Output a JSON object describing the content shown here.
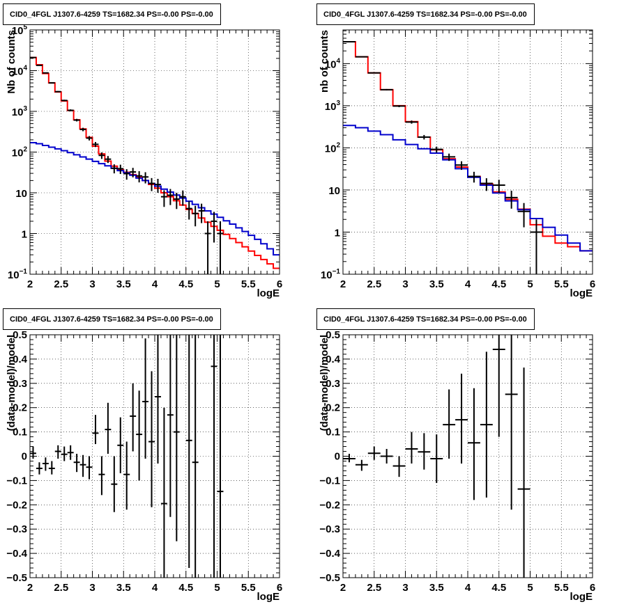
{
  "chart_data": [
    {
      "type": "line",
      "title": "CID0_4FGL J1307.6-4259 TS=1682.34 PS=-0.00 PS=-0.00",
      "xlabel": "logE",
      "ylabel": "Nb of counts",
      "xlim": [
        2,
        6
      ],
      "ylim": [
        0.1,
        100000
      ],
      "yscale": "log",
      "xticks": [
        "2",
        "2.5",
        "3",
        "3.5",
        "4",
        "4.5",
        "5",
        "5.5",
        "6"
      ],
      "yticks": [
        {
          "v": 0.1,
          "base": "10",
          "exp": "−1"
        },
        {
          "v": 1,
          "base": "1",
          "exp": ""
        },
        {
          "v": 10,
          "base": "10",
          "exp": ""
        },
        {
          "v": 100,
          "base": "10",
          "exp": "2"
        },
        {
          "v": 1000,
          "base": "10",
          "exp": "3"
        },
        {
          "v": 10000,
          "base": "10",
          "exp": "4"
        },
        {
          "v": 100000,
          "base": "10",
          "exp": "5"
        }
      ],
      "grid": true,
      "bin_edges": [
        2.0,
        2.1,
        2.2,
        2.3,
        2.4,
        2.5,
        2.6,
        2.7,
        2.8,
        2.9,
        3.0,
        3.1,
        3.2,
        3.3,
        3.4,
        3.5,
        3.6,
        3.7,
        3.8,
        3.9,
        4.0,
        4.1,
        4.2,
        4.3,
        4.4,
        4.5,
        4.6,
        4.7,
        4.8,
        4.9,
        5.0,
        5.1,
        5.2,
        5.3,
        5.4,
        5.5,
        5.6,
        5.7,
        5.8,
        5.9,
        6.0
      ],
      "series": [
        {
          "kind": "step",
          "color": "#ff0000",
          "values": [
            21000,
            14000,
            8500,
            5000,
            3000,
            1800,
            1050,
            620,
            370,
            230,
            140,
            90,
            60,
            45,
            37,
            32,
            28,
            24,
            20,
            16,
            13,
            10,
            8,
            6.4,
            5,
            3.9,
            3.1,
            2.4,
            1.9,
            1.5,
            1.2,
            0.95,
            0.75,
            0.6,
            0.47,
            0.37,
            0.29,
            0.23,
            0.18,
            0.14
          ]
        },
        {
          "kind": "step",
          "color": "#0000cc",
          "values": [
            170,
            160,
            145,
            132,
            120,
            108,
            97,
            86,
            76,
            67,
            59,
            52,
            46,
            40,
            35,
            31,
            27,
            23,
            20,
            17,
            14.5,
            12.3,
            10.4,
            8.8,
            7.4,
            6.2,
            5.2,
            4.3,
            3.6,
            3.0,
            2.5,
            2.05,
            1.7,
            1.38,
            1.12,
            0.9,
            0.72,
            0.56,
            0.42,
            0.3
          ]
        },
        {
          "kind": "points",
          "color": "#000000",
          "points": [
            {
              "x": 2.05,
              "y": 21000,
              "lo": 20700,
              "hi": 21300
            },
            {
              "x": 2.15,
              "y": 13500,
              "lo": 13250,
              "hi": 13750
            },
            {
              "x": 2.25,
              "y": 8800,
              "lo": 8600,
              "hi": 9000
            },
            {
              "x": 2.35,
              "y": 5000,
              "lo": 4850,
              "hi": 5150
            },
            {
              "x": 2.45,
              "y": 3050,
              "lo": 2940,
              "hi": 3160
            },
            {
              "x": 2.55,
              "y": 1850,
              "lo": 1770,
              "hi": 1930
            },
            {
              "x": 2.65,
              "y": 1060,
              "lo": 1000,
              "hi": 1120
            },
            {
              "x": 2.75,
              "y": 610,
              "lo": 565,
              "hi": 655
            },
            {
              "x": 2.85,
              "y": 360,
              "lo": 325,
              "hi": 395
            },
            {
              "x": 2.95,
              "y": 220,
              "lo": 193,
              "hi": 247
            },
            {
              "x": 3.05,
              "y": 155,
              "lo": 133,
              "hi": 177
            },
            {
              "x": 3.15,
              "y": 83,
              "lo": 68,
              "hi": 98
            },
            {
              "x": 3.25,
              "y": 67,
              "lo": 54,
              "hi": 80
            },
            {
              "x": 3.35,
              "y": 40,
              "lo": 30,
              "hi": 50
            },
            {
              "x": 3.45,
              "y": 39,
              "lo": 29,
              "hi": 49
            },
            {
              "x": 3.55,
              "y": 29.5,
              "lo": 21,
              "hi": 38
            },
            {
              "x": 3.65,
              "y": 32.5,
              "lo": 24,
              "hi": 41
            },
            {
              "x": 3.75,
              "y": 26,
              "lo": 18,
              "hi": 34
            },
            {
              "x": 3.85,
              "y": 24.5,
              "lo": 17,
              "hi": 32
            },
            {
              "x": 3.95,
              "y": 17,
              "lo": 11,
              "hi": 23
            },
            {
              "x": 4.05,
              "y": 16,
              "lo": 10,
              "hi": 22
            },
            {
              "x": 4.15,
              "y": 8,
              "lo": 4.5,
              "hi": 11.5
            },
            {
              "x": 4.25,
              "y": 8.7,
              "lo": 5,
              "hi": 12.4
            },
            {
              "x": 4.35,
              "y": 7,
              "lo": 4,
              "hi": 10
            },
            {
              "x": 4.45,
              "y": 8,
              "lo": 4.8,
              "hi": 11.4
            },
            {
              "x": 4.55,
              "y": 4.1,
              "lo": 2.2,
              "hi": 6.2
            },
            {
              "x": 4.65,
              "y": 3.1,
              "lo": 1.5,
              "hi": 4.8
            },
            {
              "x": 4.75,
              "y": 3.6,
              "lo": 1.8,
              "hi": 5.4
            },
            {
              "x": 4.85,
              "y": 1,
              "lo": 0.1,
              "hi": 2
            },
            {
              "x": 4.95,
              "y": 2,
              "lo": 0.6,
              "hi": 3.4
            },
            {
              "x": 5.05,
              "y": 1,
              "lo": 0.1,
              "hi": 2
            }
          ]
        }
      ]
    },
    {
      "type": "line",
      "title": "CID0_4FGL J1307.6-4259 TS=1682.34 PS=-0.00 PS=-0.00",
      "xlabel": "logE",
      "ylabel": "nb of counts",
      "xlim": [
        2,
        6
      ],
      "ylim": [
        0.1,
        63000
      ],
      "yscale": "log",
      "xticks": [
        "2",
        "2.5",
        "3",
        "3.5",
        "4",
        "4.5",
        "5",
        "5.5",
        "6"
      ],
      "yticks": [
        {
          "v": 0.1,
          "base": "10",
          "exp": "−1"
        },
        {
          "v": 1,
          "base": "1",
          "exp": ""
        },
        {
          "v": 10,
          "base": "10",
          "exp": ""
        },
        {
          "v": 100,
          "base": "10",
          "exp": "2"
        },
        {
          "v": 1000,
          "base": "10",
          "exp": "3"
        },
        {
          "v": 10000,
          "base": "10",
          "exp": "4"
        }
      ],
      "grid": true,
      "bin_edges": [
        2.0,
        2.2,
        2.4,
        2.6,
        2.8,
        3.0,
        3.2,
        3.4,
        3.6,
        3.8,
        4.0,
        4.2,
        4.4,
        4.6,
        4.8,
        5.0,
        5.2,
        5.4,
        5.6,
        5.8,
        6.0
      ],
      "series": [
        {
          "kind": "step",
          "color": "#ff0000",
          "values": [
            33000,
            14500,
            6000,
            2400,
            1000,
            420,
            180,
            90,
            55,
            35,
            21,
            14,
            9,
            6,
            3.5,
            1.5,
            0.8,
            0.55,
            0.45,
            0.36
          ]
        },
        {
          "kind": "step",
          "color": "#0000cc",
          "values": [
            340,
            300,
            250,
            205,
            155,
            120,
            95,
            75,
            52,
            32,
            20,
            13,
            8.5,
            5.5,
            3.4,
            2.1,
            1.3,
            0.85,
            0.55,
            0.36
          ]
        },
        {
          "kind": "points",
          "color": "#000000",
          "points": [
            {
              "x": 2.1,
              "y": 33000,
              "lo": 32700,
              "hi": 33300
            },
            {
              "x": 2.3,
              "y": 14500,
              "lo": 14300,
              "hi": 14700
            },
            {
              "x": 2.5,
              "y": 6000,
              "lo": 5850,
              "hi": 6150
            },
            {
              "x": 2.7,
              "y": 2400,
              "lo": 2310,
              "hi": 2490
            },
            {
              "x": 2.9,
              "y": 980,
              "lo": 925,
              "hi": 1035
            },
            {
              "x": 3.1,
              "y": 410,
              "lo": 375,
              "hi": 445
            },
            {
              "x": 3.3,
              "y": 180,
              "lo": 158,
              "hi": 202
            },
            {
              "x": 3.5,
              "y": 92,
              "lo": 77,
              "hi": 107
            },
            {
              "x": 3.7,
              "y": 61,
              "lo": 49,
              "hi": 73
            },
            {
              "x": 3.9,
              "y": 39,
              "lo": 30,
              "hi": 48
            },
            {
              "x": 4.1,
              "y": 21,
              "lo": 15,
              "hi": 27
            },
            {
              "x": 4.3,
              "y": 14.3,
              "lo": 9.5,
              "hi": 19
            },
            {
              "x": 4.5,
              "y": 13,
              "lo": 8.5,
              "hi": 17.5
            },
            {
              "x": 4.7,
              "y": 6.6,
              "lo": 3.6,
              "hi": 9.6
            },
            {
              "x": 4.9,
              "y": 3.1,
              "lo": 1.3,
              "hi": 4.9
            },
            {
              "x": 5.1,
              "y": 1,
              "lo": 0.1,
              "hi": 2
            }
          ]
        }
      ]
    },
    {
      "type": "scatter",
      "title": "CID0_4FGL J1307.6-4259 TS=1682.34 PS=-0.00 PS=-0.00",
      "xlabel": "logE",
      "ylabel": "(data-model)/model",
      "xlim": [
        2,
        6
      ],
      "ylim": [
        -0.5,
        0.5
      ],
      "yscale": "linear",
      "xticks": [
        "2",
        "2.5",
        "3",
        "3.5",
        "4",
        "4.5",
        "5",
        "5.5",
        "6"
      ],
      "yticks": [
        "−0.5",
        "−0.4",
        "−0.3",
        "−0.2",
        "−0.1",
        "0",
        "0.1",
        "0.2",
        "0.3",
        "0.4",
        "0.5"
      ],
      "grid": true,
      "half_width": 0.05,
      "points": [
        {
          "x": 2.05,
          "y": 0.012,
          "lo": -0.01,
          "hi": 0.04
        },
        {
          "x": 2.15,
          "y": -0.05,
          "lo": -0.075,
          "hi": -0.025
        },
        {
          "x": 2.25,
          "y": -0.03,
          "lo": -0.06,
          "hi": -0.005
        },
        {
          "x": 2.35,
          "y": -0.05,
          "lo": -0.075,
          "hi": -0.02
        },
        {
          "x": 2.45,
          "y": 0.02,
          "lo": -0.01,
          "hi": 0.045
        },
        {
          "x": 2.55,
          "y": 0.008,
          "lo": -0.02,
          "hi": 0.04
        },
        {
          "x": 2.65,
          "y": 0.015,
          "lo": -0.015,
          "hi": 0.045
        },
        {
          "x": 2.75,
          "y": -0.025,
          "lo": -0.065,
          "hi": 0.01
        },
        {
          "x": 2.85,
          "y": -0.035,
          "lo": -0.085,
          "hi": 0.005
        },
        {
          "x": 2.95,
          "y": -0.045,
          "lo": -0.095,
          "hi": 0.0
        },
        {
          "x": 3.05,
          "y": 0.095,
          "lo": 0.05,
          "hi": 0.17
        },
        {
          "x": 3.15,
          "y": -0.075,
          "lo": -0.16,
          "hi": 0.0
        },
        {
          "x": 3.25,
          "y": 0.11,
          "lo": 0.01,
          "hi": 0.22
        },
        {
          "x": 3.35,
          "y": -0.115,
          "lo": -0.23,
          "hi": 0.0
        },
        {
          "x": 3.45,
          "y": 0.045,
          "lo": -0.07,
          "hi": 0.16
        },
        {
          "x": 3.55,
          "y": -0.075,
          "lo": -0.22,
          "hi": 0.06
        },
        {
          "x": 3.65,
          "y": 0.165,
          "lo": 0.02,
          "hi": 0.3
        },
        {
          "x": 3.75,
          "y": 0.09,
          "lo": -0.1,
          "hi": 0.27
        },
        {
          "x": 3.85,
          "y": 0.225,
          "lo": -0.01,
          "hi": 0.485
        },
        {
          "x": 3.95,
          "y": 0.06,
          "lo": -0.21,
          "hi": 0.35
        },
        {
          "x": 4.05,
          "y": 0.245,
          "lo": -0.03,
          "hi": 0.5
        },
        {
          "x": 4.15,
          "y": -0.195,
          "lo": -0.5,
          "hi": 0.2
        },
        {
          "x": 4.25,
          "y": 0.17,
          "lo": -0.25,
          "hi": 0.5
        },
        {
          "x": 4.35,
          "y": 0.1,
          "lo": -0.35,
          "hi": 0.5
        },
        {
          "x": 4.55,
          "y": 0.065,
          "lo": -0.46,
          "hi": 0.5
        },
        {
          "x": 4.65,
          "y": -0.025,
          "lo": -0.5,
          "hi": 0.5
        },
        {
          "x": 4.95,
          "y": 0.37,
          "lo": -0.5,
          "hi": 0.5
        },
        {
          "x": 5.05,
          "y": -0.145,
          "lo": -0.5,
          "hi": 0.5
        }
      ]
    },
    {
      "type": "scatter",
      "title": "CID0_4FGL J1307.6-4259 TS=1682.34 PS=-0.00 PS=-0.00",
      "xlabel": "logE",
      "ylabel": "(data-model)/model",
      "xlim": [
        2,
        6
      ],
      "ylim": [
        -0.5,
        0.5
      ],
      "yscale": "linear",
      "xticks": [
        "2",
        "2.5",
        "3",
        "3.5",
        "4",
        "4.5",
        "5",
        "5.5",
        "6"
      ],
      "yticks": [
        "−0.5",
        "−0.4",
        "−0.3",
        "−0.2",
        "−0.1",
        "0",
        "0.1",
        "0.2",
        "0.3",
        "0.4",
        "0.5"
      ],
      "grid": true,
      "half_width": 0.1,
      "points": [
        {
          "x": 2.1,
          "y": -0.01,
          "lo": -0.025,
          "hi": 0.01
        },
        {
          "x": 2.3,
          "y": -0.035,
          "lo": -0.06,
          "hi": -0.015
        },
        {
          "x": 2.5,
          "y": 0.012,
          "lo": -0.015,
          "hi": 0.04
        },
        {
          "x": 2.7,
          "y": 0.0,
          "lo": -0.03,
          "hi": 0.03
        },
        {
          "x": 2.9,
          "y": -0.04,
          "lo": -0.085,
          "hi": 0.0
        },
        {
          "x": 3.1,
          "y": 0.03,
          "lo": -0.03,
          "hi": 0.1
        },
        {
          "x": 3.3,
          "y": 0.018,
          "lo": -0.055,
          "hi": 0.095
        },
        {
          "x": 3.5,
          "y": -0.01,
          "lo": -0.11,
          "hi": 0.09
        },
        {
          "x": 3.7,
          "y": 0.13,
          "lo": -0.01,
          "hi": 0.275
        },
        {
          "x": 3.9,
          "y": 0.15,
          "lo": -0.03,
          "hi": 0.34
        },
        {
          "x": 4.1,
          "y": 0.055,
          "lo": -0.18,
          "hi": 0.28
        },
        {
          "x": 4.3,
          "y": 0.13,
          "lo": -0.17,
          "hi": 0.43
        },
        {
          "x": 4.5,
          "y": 0.44,
          "lo": 0.08,
          "hi": 0.5
        },
        {
          "x": 4.7,
          "y": 0.255,
          "lo": -0.22,
          "hi": 0.5
        },
        {
          "x": 4.9,
          "y": -0.135,
          "lo": -0.5,
          "hi": 0.365
        }
      ]
    }
  ]
}
